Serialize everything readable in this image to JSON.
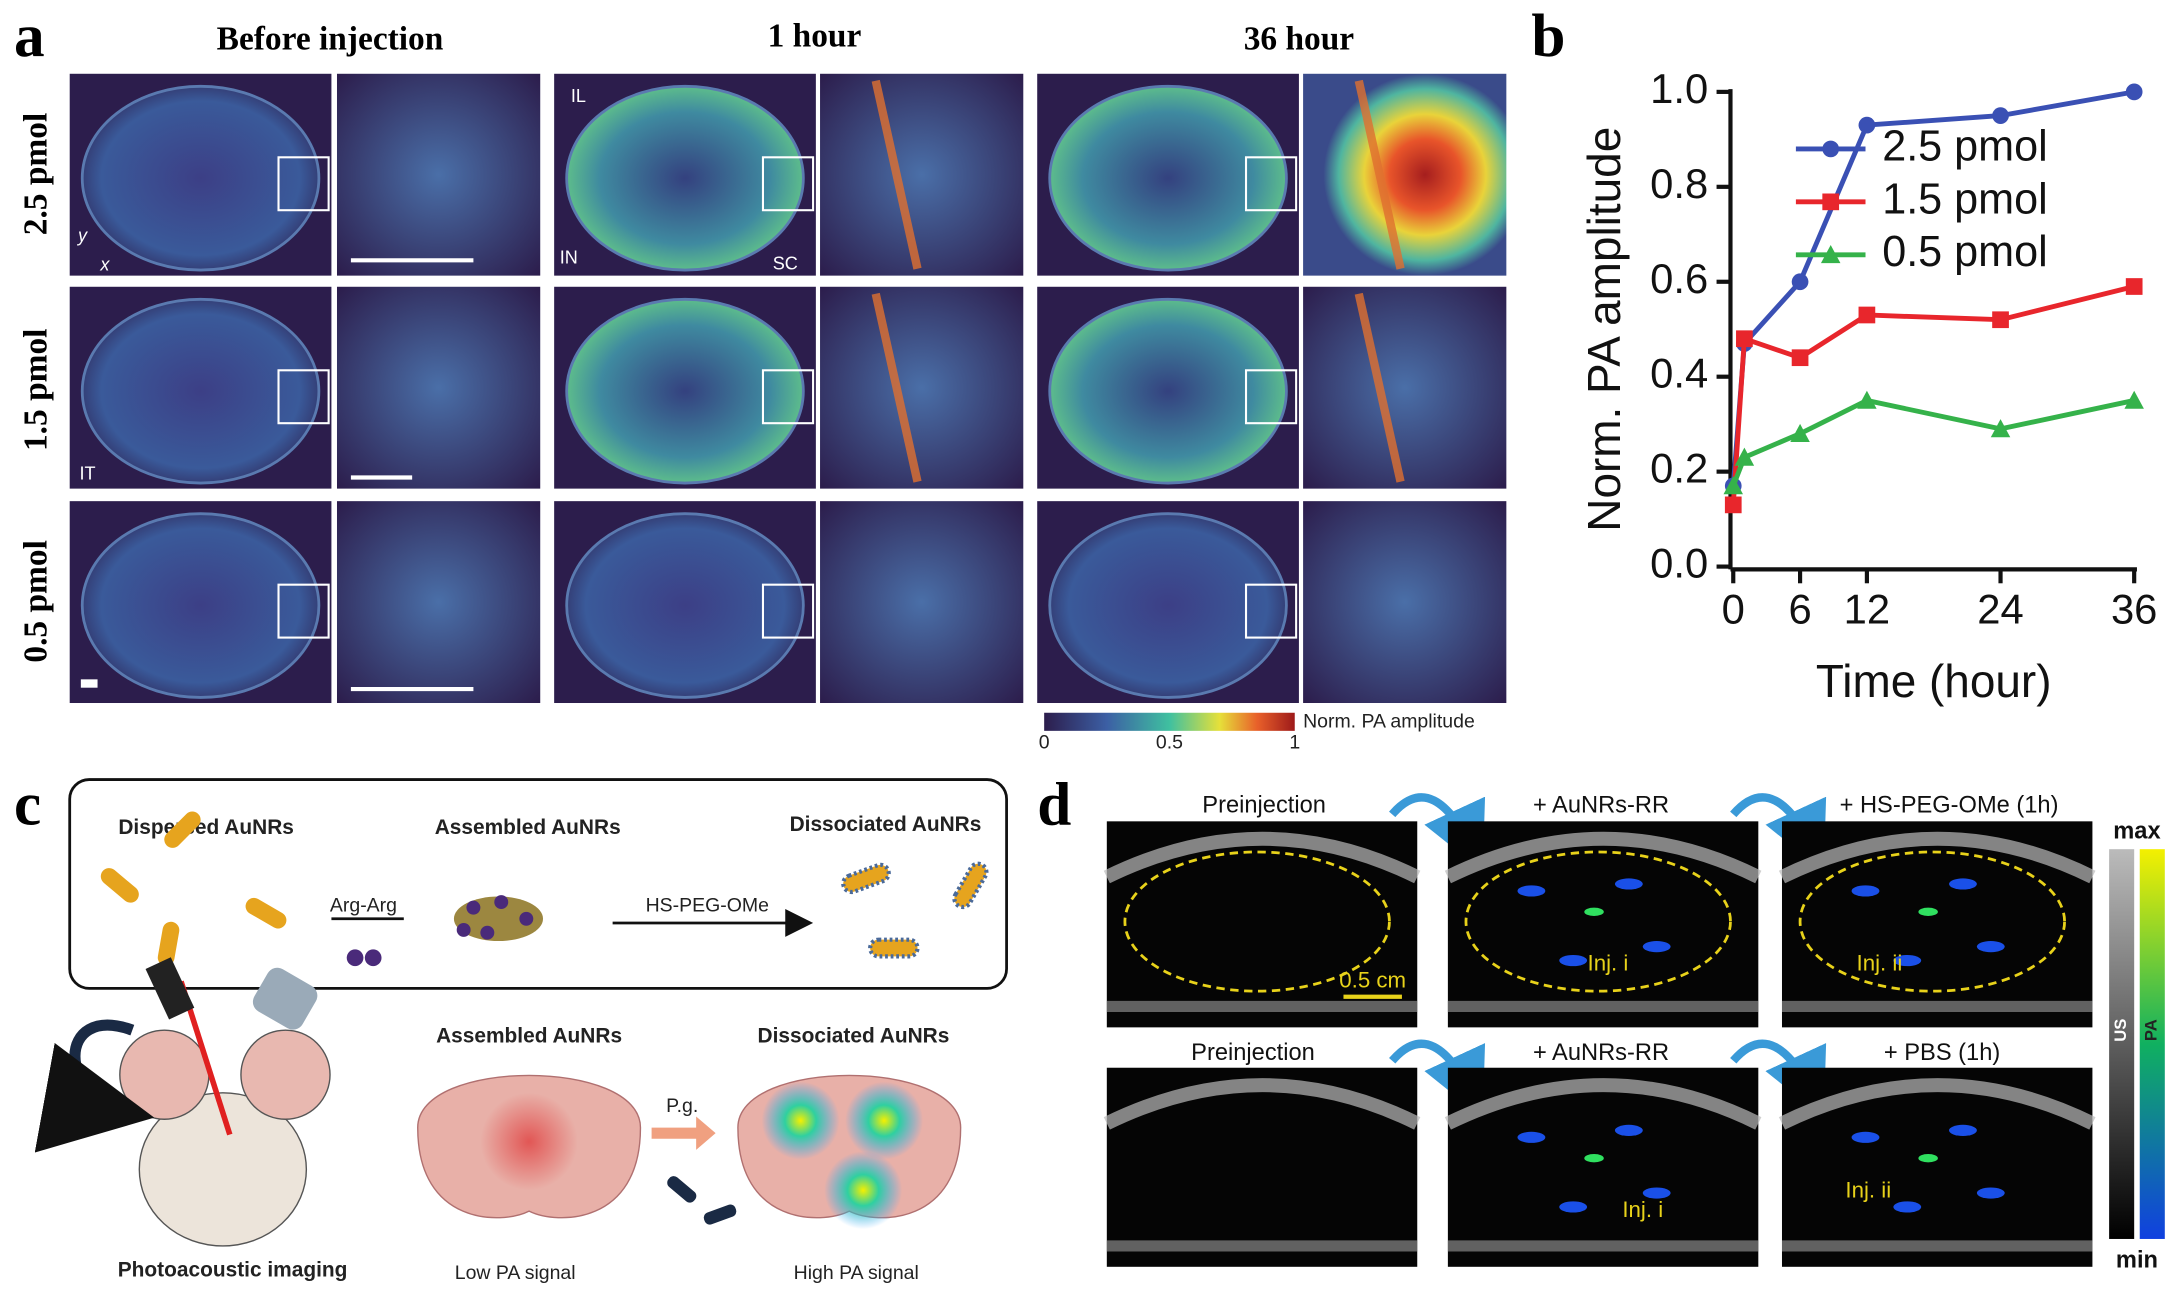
{
  "panel_a": {
    "label": "a",
    "columns": [
      "Before injection",
      "1 hour",
      "36 hour"
    ],
    "rows": [
      "2.5 pmol",
      "1.5 pmol",
      "0.5 pmol"
    ],
    "annotations": {
      "il": "IL",
      "in": "IN",
      "sc": "SC",
      "it": "IT",
      "y": "y",
      "x": "x"
    },
    "colorbar": {
      "title": "Norm. PA amplitude",
      "ticks": [
        0,
        0.5,
        1
      ]
    }
  },
  "chart_data": {
    "type": "line",
    "label": "b",
    "x_label": "Time (hour)",
    "y_label": "Norm. PA amplitude",
    "x": [
      0,
      1,
      6,
      12,
      24,
      36
    ],
    "xlim": [
      0,
      36
    ],
    "xticks": [
      0,
      6,
      12,
      24,
      36
    ],
    "ylim": [
      0,
      1
    ],
    "yticks": [
      {
        "value": 0,
        "label": "0.0"
      },
      0.2,
      0.4,
      0.6,
      0.8,
      {
        "value": 1,
        "label": "1.0"
      }
    ],
    "legend": "upper right",
    "series": [
      {
        "name": "2.5 pmol",
        "color": "#3a50b4",
        "marker": "circle",
        "values": [
          0.17,
          0.47,
          0.6,
          0.93,
          0.95,
          1.0
        ]
      },
      {
        "name": "1.5 pmol",
        "color": "#e8262c",
        "marker": "square",
        "values": [
          0.13,
          0.48,
          0.44,
          0.53,
          0.52,
          0.59
        ]
      },
      {
        "name": "0.5 pmol",
        "color": "#35b24a",
        "marker": "triangle",
        "values": [
          0.17,
          0.23,
          0.28,
          0.35,
          0.29,
          0.35
        ]
      }
    ]
  },
  "panel_c": {
    "label": "c",
    "top": {
      "dispersed": "Dispersed AuNRs",
      "assembled": "Assembled AuNRs",
      "dissociated": "Dissociated AuNRs",
      "linker": "Arg-Arg",
      "reagent": "HS-PEG-OMe"
    },
    "bottom": {
      "assembled": "Assembled AuNRs",
      "dissociated": "Dissociated AuNRs",
      "agent": "P.g.",
      "imaging": "Photoacoustic imaging",
      "low": "Low PA signal",
      "high": "High PA signal"
    }
  },
  "panel_d": {
    "label": "d",
    "top_row": [
      "Preinjection",
      "+ AuNRs-RR",
      "+ HS-PEG-OMe (1h)"
    ],
    "bottom_row": [
      "Preinjection",
      "+ AuNRs-RR",
      "+ PBS (1h)"
    ],
    "scale_bar": "0.5 cm",
    "injections": [
      "Inj. i",
      "Inj. ii",
      "Inj. i",
      "Inj. ii"
    ],
    "colorbar": {
      "max": "max",
      "min": "min",
      "us": "US",
      "pa": "PA"
    }
  }
}
